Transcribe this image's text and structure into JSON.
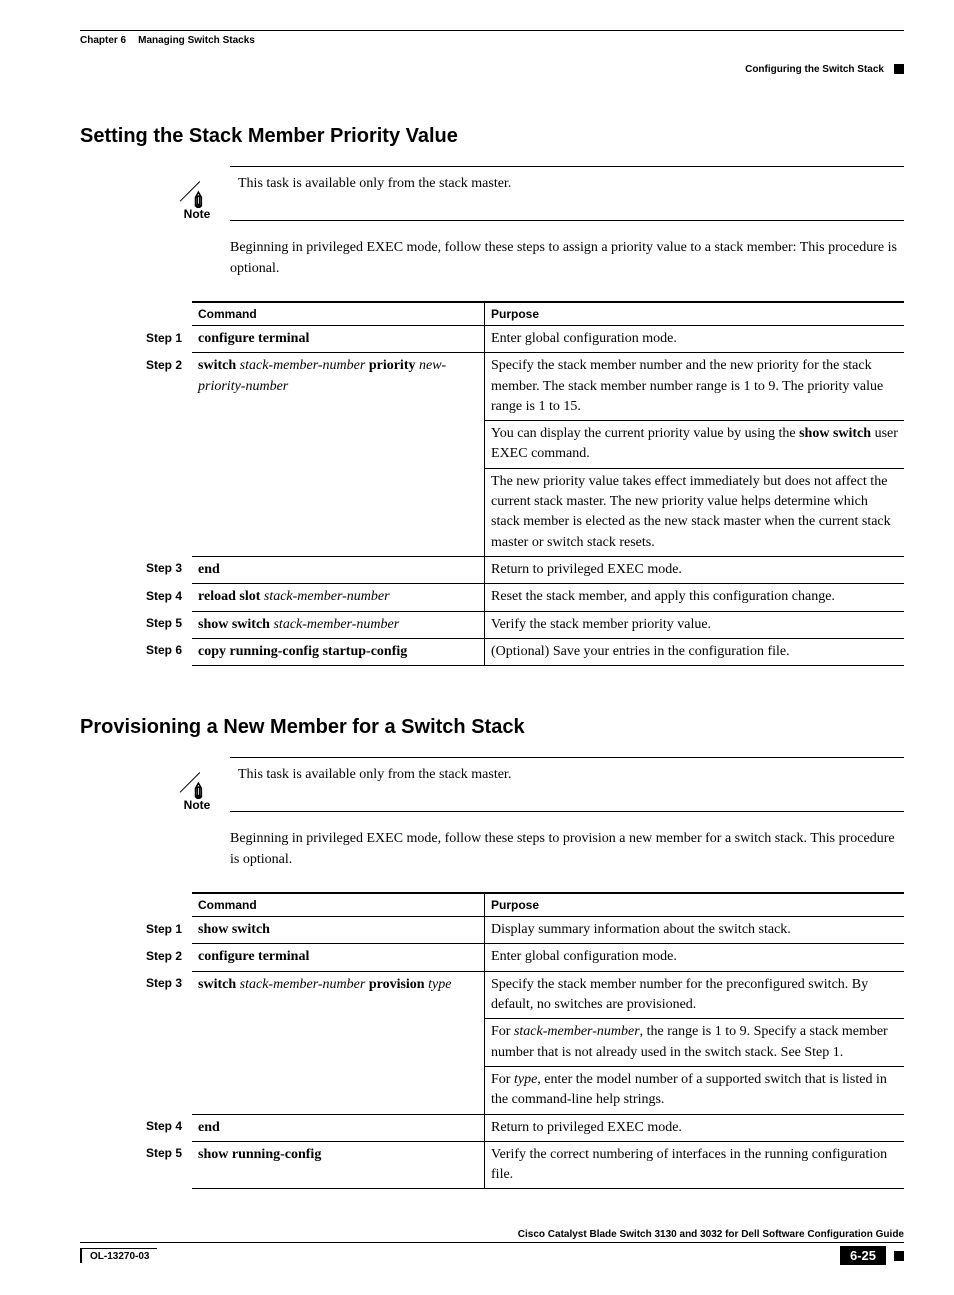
{
  "header": {
    "chapter_label": "Chapter 6",
    "chapter_title": "Managing Switch Stacks",
    "section_title": "Configuring the Switch Stack"
  },
  "s1": {
    "heading": "Setting the Stack Member Priority Value",
    "note_label": "Note",
    "note_text": "This task is available only from the stack master.",
    "intro": "Beginning in privileged EXEC mode, follow these steps to assign a priority value to a stack member: This procedure is optional.",
    "col_command": "Command",
    "col_purpose": "Purpose",
    "steps": {
      "r1": {
        "label": "Step 1",
        "cmd_b": "configure terminal",
        "purpose": "Enter global configuration mode."
      },
      "r2": {
        "label": "Step 2",
        "cmd_b1": "switch",
        "cmd_i1": "stack-member-number",
        "cmd_b2": "priority",
        "cmd_i2": "new-priority-number",
        "p1": "Specify the stack member number and the new priority for the stack member. The stack member number range is 1 to 9. The priority value range is 1 to 15.",
        "p2a": "You can display the current priority value by using the ",
        "p2b": "show switch",
        "p2c": " user EXEC command.",
        "p3": "The new priority value takes effect immediately but does not affect the current stack master. The new priority value helps determine which stack member is elected as the new stack master when the current stack master or switch stack resets."
      },
      "r3": {
        "label": "Step 3",
        "cmd_b": "end",
        "purpose": "Return to privileged EXEC mode."
      },
      "r4": {
        "label": "Step 4",
        "cmd_b": "reload slot",
        "cmd_i": "stack-member-number",
        "purpose": "Reset the stack member, and apply this configuration change."
      },
      "r5": {
        "label": "Step 5",
        "cmd_b": "show switch",
        "cmd_i": "stack-member-number",
        "purpose": "Verify the stack member priority value."
      },
      "r6": {
        "label": "Step 6",
        "cmd_b": "copy running-config startup-config",
        "purpose": "(Optional) Save your entries in the configuration file."
      }
    }
  },
  "s2": {
    "heading": "Provisioning a New Member for a Switch Stack",
    "note_label": "Note",
    "note_text": "This task is available only from the stack master.",
    "intro": "Beginning in privileged EXEC mode, follow these steps to provision a new member for a switch stack. This procedure is optional.",
    "col_command": "Command",
    "col_purpose": "Purpose",
    "steps": {
      "r1": {
        "label": "Step 1",
        "cmd_b": "show switch",
        "purpose": "Display summary information about the switch stack."
      },
      "r2": {
        "label": "Step 2",
        "cmd_b": "configure terminal",
        "purpose": "Enter global configuration mode."
      },
      "r3": {
        "label": "Step 3",
        "cmd_b1": "switch",
        "cmd_i1": "stack-member-number",
        "cmd_b2": "provision",
        "cmd_i2": "type",
        "p1": "Specify the stack member number for the preconfigured switch. By default, no switches are provisioned.",
        "p2a": "For ",
        "p2i": "stack-member-number",
        "p2b": ", the range is 1 to 9. Specify a stack member number that is not already used in the switch stack. See Step 1.",
        "p3a": "For ",
        "p3i": "type",
        "p3b": ", enter the model number of a supported switch that is listed in the command-line help strings."
      },
      "r4": {
        "label": "Step 4",
        "cmd_b": "end",
        "purpose": "Return to privileged EXEC mode."
      },
      "r5": {
        "label": "Step 5",
        "cmd_b": "show running-config",
        "purpose": "Verify the correct numbering of interfaces in the running configuration file."
      }
    }
  },
  "footer": {
    "guide": "Cisco Catalyst Blade Switch 3130 and 3032 for Dell Software Configuration Guide",
    "docid": "OL-13270-03",
    "page": "6-25"
  }
}
